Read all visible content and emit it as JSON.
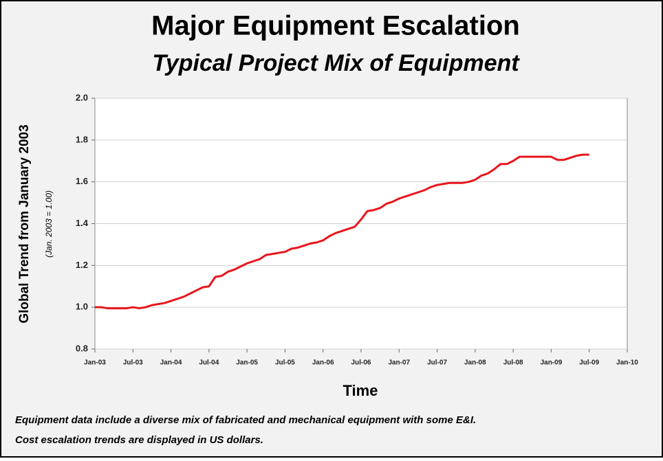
{
  "chart_data": {
    "type": "line",
    "title": "Major Equipment Escalation",
    "subtitle": "Typical Project Mix of Equipment",
    "y_label": "Global Trend from January 2003",
    "y_sublabel": "(Jan. 2003 = 1.00)",
    "x_label": "Time",
    "notes": [
      "Equipment data include a diverse mix of fabricated and mechanical equipment with some E&I.",
      "Cost escalation trends are displayed in US dollars."
    ],
    "categories": [
      "Jan-03",
      null,
      null,
      null,
      null,
      null,
      "Jul-03",
      null,
      null,
      null,
      null,
      null,
      "Jan-04",
      null,
      null,
      null,
      null,
      null,
      "Jul-04",
      null,
      null,
      null,
      null,
      null,
      "Jan-05",
      null,
      null,
      null,
      null,
      null,
      "Jul-05",
      null,
      null,
      null,
      null,
      null,
      "Jan-06",
      null,
      null,
      null,
      null,
      null,
      "Jul-06",
      null,
      null,
      null,
      null,
      null,
      "Jan-07",
      null,
      null,
      null,
      null,
      null,
      "Jul-07",
      null,
      null,
      null,
      null,
      null,
      "Jan-08",
      null,
      null,
      null,
      null,
      null,
      "Jul-08",
      null,
      null,
      null,
      null,
      null,
      "Jan-09",
      null,
      null,
      null,
      null,
      null,
      "Jul-09",
      null,
      null,
      null,
      null,
      null,
      "Jan-10"
    ],
    "series": [
      {
        "name": "Major Equipment",
        "color": "#e8151b",
        "values": [
          1.0,
          1.0,
          0.995,
          0.995,
          0.995,
          0.995,
          1.0,
          0.995,
          1.0,
          1.01,
          1.015,
          1.02,
          1.03,
          1.04,
          1.05,
          1.065,
          1.08,
          1.095,
          1.1,
          1.145,
          1.15,
          1.17,
          1.18,
          1.195,
          1.21,
          1.22,
          1.23,
          1.25,
          1.255,
          1.26,
          1.265,
          1.28,
          1.285,
          1.295,
          1.305,
          1.31,
          1.32,
          1.34,
          1.355,
          1.365,
          1.375,
          1.385,
          1.42,
          1.46,
          1.465,
          1.475,
          1.495,
          1.505,
          1.52,
          1.53,
          1.54,
          1.55,
          1.56,
          1.575,
          1.585,
          1.59,
          1.595,
          1.595,
          1.595,
          1.6,
          1.61,
          1.63,
          1.64,
          1.66,
          1.685,
          1.685,
          1.7,
          1.72,
          1.72,
          1.72,
          1.72,
          1.72,
          1.72,
          1.705,
          1.705,
          1.715,
          1.725,
          1.73,
          1.73,
          null,
          null,
          null,
          null,
          null,
          null
        ]
      }
    ],
    "ylim": [
      0.8,
      2.0
    ],
    "yticks": [
      0.8,
      {
        "value": 1,
        "label": "1.0"
      },
      1.2,
      1.4,
      1.6,
      1.8,
      {
        "value": 2,
        "label": "2.0"
      }
    ],
    "grid": true
  }
}
